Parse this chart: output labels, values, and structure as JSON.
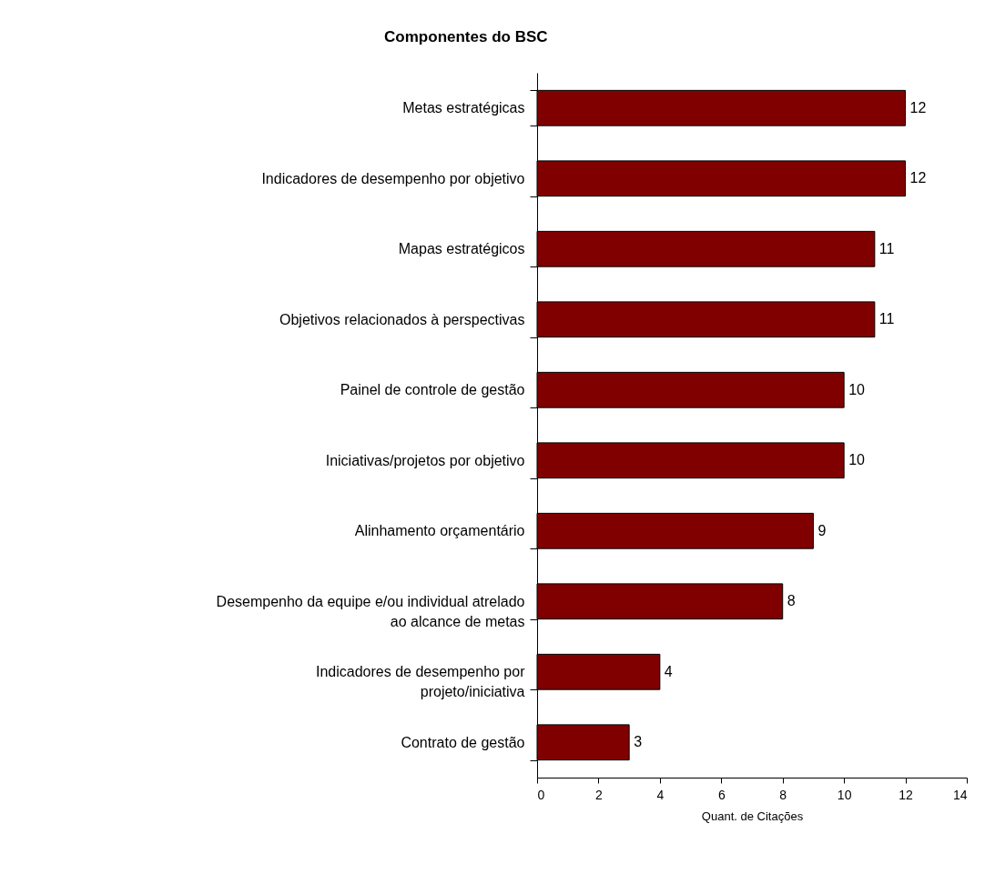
{
  "chart_data": {
    "type": "bar",
    "orientation": "horizontal",
    "title": "Componentes do BSC",
    "xlabel": "Quant. de Citações",
    "categories": [
      "Metas estratégicas",
      "Indicadores de desempenho por objetivo",
      "Mapas estratégicos",
      "Objetivos relacionados à perspectivas",
      "Painel de controle de gestão",
      "Iniciativas/projetos por objetivo",
      "Alinhamento orçamentário",
      "Desempenho da equipe e/ou individual atrelado ao alcance de metas",
      "Indicadores de desempenho por projeto/iniciativa",
      "Contrato de gestão"
    ],
    "values": [
      12,
      12,
      11,
      11,
      10,
      10,
      9,
      8,
      4,
      3
    ],
    "color": "#800000",
    "xlim": [
      0,
      14
    ],
    "xticks": [
      0,
      2,
      4,
      6,
      8,
      10,
      12,
      14
    ],
    "data_labels": true,
    "grid": false
  }
}
